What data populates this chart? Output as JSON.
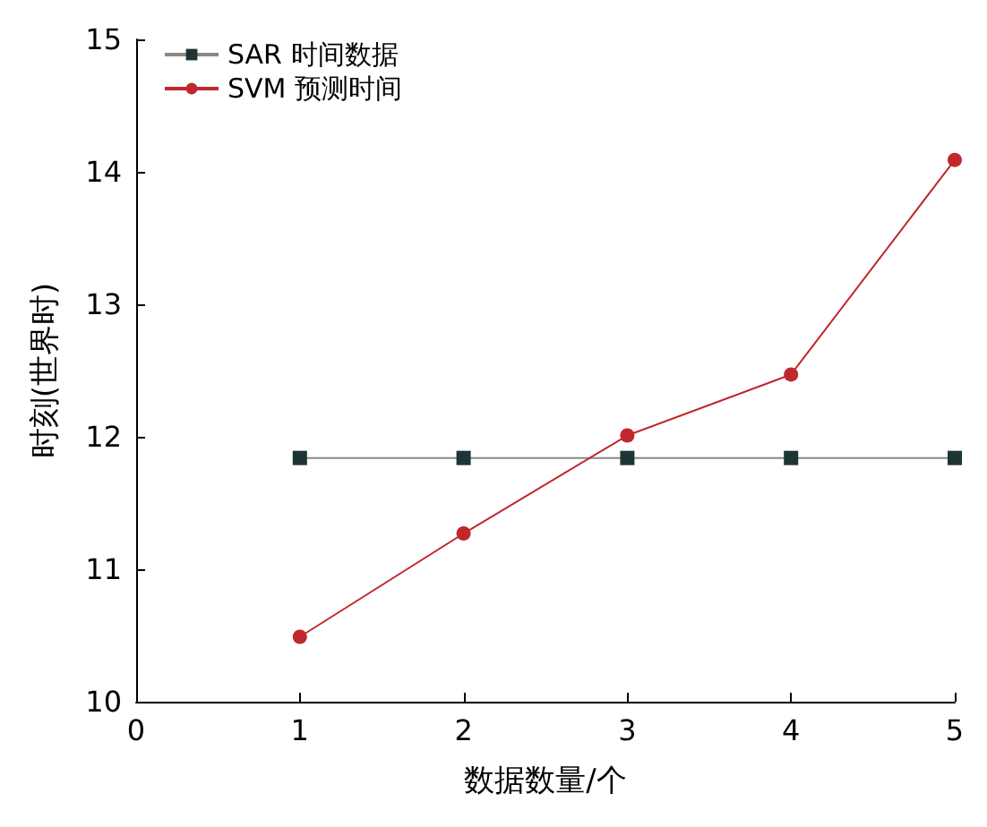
{
  "chart_data": {
    "type": "line",
    "xlabel": "数据数量/个",
    "ylabel": "时刻(世界时)",
    "x": [
      1,
      2,
      3,
      4,
      5
    ],
    "series": [
      {
        "name": "SAR 时间数据",
        "color": "#1e3535",
        "marker": "square",
        "values": [
          11.84,
          11.84,
          11.84,
          11.84,
          11.84
        ]
      },
      {
        "name": "SVM 预测时间",
        "color": "#c0282d",
        "marker": "circle",
        "values": [
          10.49,
          11.27,
          12.01,
          12.47,
          14.09
        ]
      }
    ],
    "xlim": [
      0,
      5
    ],
    "xticks": [
      0,
      1,
      2,
      3,
      4,
      5
    ],
    "ylim": [
      10,
      15
    ],
    "yticks": [
      10,
      11,
      12,
      13,
      14,
      15
    ],
    "grid": false,
    "legend": "top left"
  }
}
